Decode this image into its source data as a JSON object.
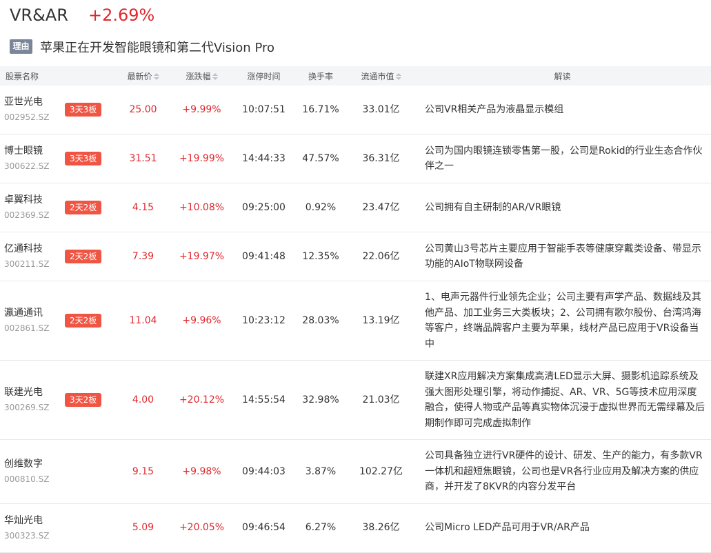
{
  "header": {
    "title": "VR&AR",
    "change": "+2.69%",
    "reason_label": "理由",
    "reason": "苹果正在开发智能眼镜和第二代Vision Pro"
  },
  "table": {
    "columns": [
      "股票名称",
      "最新价",
      "涨跌幅",
      "涨停时间",
      "换手率",
      "流通市值",
      "解读"
    ],
    "rows": [
      {
        "name": "亚世光电",
        "code": "002952.SZ",
        "tag": "3天3板",
        "price": "25.00",
        "change": "+9.99%",
        "time": "10:07:51",
        "turnover": "16.71%",
        "market_cap": "33.01亿",
        "desc": "公司VR相关产品为液晶显示模组"
      },
      {
        "name": "博士眼镜",
        "code": "300622.SZ",
        "tag": "3天3板",
        "price": "31.51",
        "change": "+19.99%",
        "time": "14:44:33",
        "turnover": "47.57%",
        "market_cap": "36.31亿",
        "desc": "公司为国内眼镜连锁零售第一股，公司是Rokid的行业生态合作伙伴之一"
      },
      {
        "name": "卓翼科技",
        "code": "002369.SZ",
        "tag": "2天2板",
        "price": "4.15",
        "change": "+10.08%",
        "time": "09:25:00",
        "turnover": "0.92%",
        "market_cap": "23.47亿",
        "desc": "公司拥有自主研制的AR/VR眼镜"
      },
      {
        "name": "亿通科技",
        "code": "300211.SZ",
        "tag": "2天2板",
        "price": "7.39",
        "change": "+19.97%",
        "time": "09:41:48",
        "turnover": "12.35%",
        "market_cap": "22.06亿",
        "desc": "公司黄山3号芯片主要应用于智能手表等健康穿戴类设备、带显示功能的AIoT物联网设备"
      },
      {
        "name": "瀛通通讯",
        "code": "002861.SZ",
        "tag": "2天2板",
        "price": "11.04",
        "change": "+9.96%",
        "time": "10:23:12",
        "turnover": "28.03%",
        "market_cap": "13.19亿",
        "desc": "1、电声元器件行业领先企业；公司主要有声学产品、数据线及其他产品、加工业务三大类板块；2、公司拥有歌尔股份、台湾鸿海等客户，终端品牌客户主要为苹果，线材产品已应用于VR设备当中"
      },
      {
        "name": "联建光电",
        "code": "300269.SZ",
        "tag": "3天2板",
        "price": "4.00",
        "change": "+20.12%",
        "time": "14:55:54",
        "turnover": "32.98%",
        "market_cap": "21.03亿",
        "desc": "联建XR应用解决方案集成高清LED显示大屏、摄影机追踪系统及强大图形处理引擎，将动作捕捉、AR、VR、5G等技术应用深度融合，使得人物或产品等真实物体沉浸于虚拟世界而无需绿幕及后期制作即可完成虚拟制作"
      },
      {
        "name": "创维数字",
        "code": "000810.SZ",
        "price": "9.15",
        "change": "+9.98%",
        "time": "09:44:03",
        "turnover": "3.87%",
        "market_cap": "102.27亿",
        "desc": "公司具备独立进行VR硬件的设计、研发、生产的能力，有多款VR一体机和超短焦眼镜，公司也是VR各行业应用及解决方案的供应商，并开发了8KVR的内容分发平台"
      },
      {
        "name": "华灿光电",
        "code": "300323.SZ",
        "price": "5.09",
        "change": "+20.05%",
        "time": "09:46:54",
        "turnover": "6.27%",
        "market_cap": "38.26亿",
        "desc": "公司Micro LED产品可用于VR/AR产品"
      }
    ]
  }
}
